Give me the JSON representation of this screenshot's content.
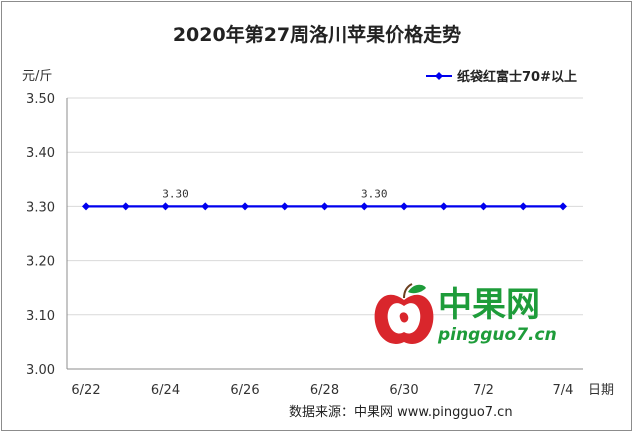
{
  "chart_data": {
    "type": "line",
    "title": "2020年第27周洛川苹果价格走势",
    "ylabel": "元/斤",
    "xlabel": "日期",
    "ylim": [
      3.0,
      3.5
    ],
    "yticks": [
      "3.00",
      "3.10",
      "3.20",
      "3.30",
      "3.40",
      "3.50"
    ],
    "categories": [
      "6/22",
      "6/23",
      "6/24",
      "6/25",
      "6/26",
      "6/27",
      "6/28",
      "6/29",
      "6/30",
      "7/1",
      "7/2",
      "7/3",
      "7/4"
    ],
    "x_tick_labels": [
      "6/22",
      "6/24",
      "6/26",
      "6/28",
      "6/30",
      "7/2",
      "7/4"
    ],
    "series": [
      {
        "name": "纸袋红富士70#以上",
        "color": "#0000ee",
        "values": [
          3.3,
          3.3,
          3.3,
          3.3,
          3.3,
          3.3,
          3.3,
          3.3,
          3.3,
          3.3,
          3.3,
          3.3,
          3.3
        ]
      }
    ],
    "data_labels": [
      {
        "index": 2,
        "text": "3.30"
      },
      {
        "index": 7,
        "text": "3.30"
      }
    ],
    "grid": true,
    "legend": "top-right"
  },
  "logo": {
    "name": "中果网",
    "url": "pingguo7.cn"
  },
  "source": "数据来源：中果网 www.pingguo7.cn",
  "colors": {
    "line": "#0000ee",
    "grid": "#d9d9d9",
    "logo_green": "#1e9c3a",
    "logo_red": "#d9262c"
  }
}
